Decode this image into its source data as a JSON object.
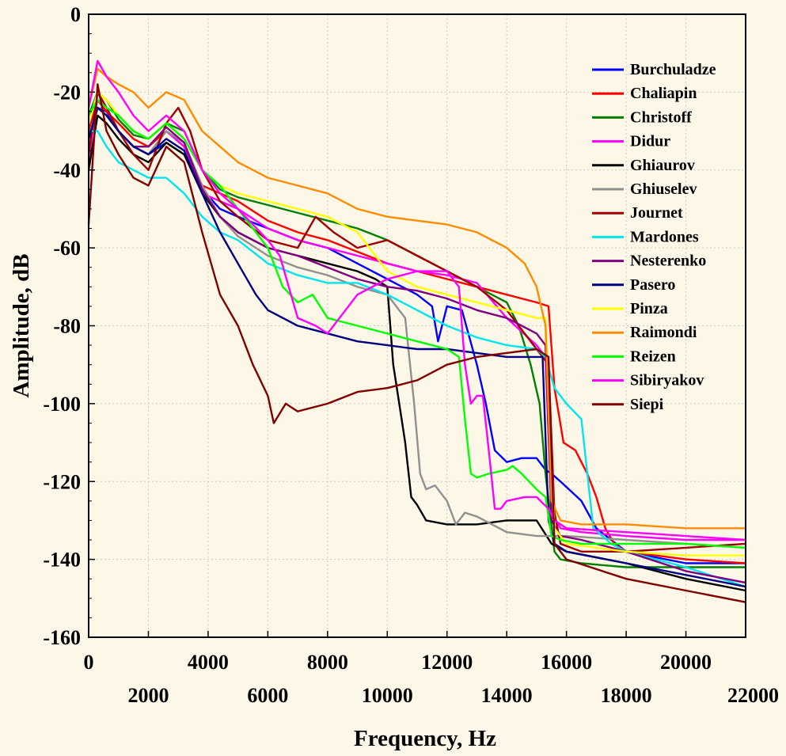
{
  "chart_data": {
    "type": "line",
    "xlabel": "Frequency, Hz",
    "ylabel": "Amplitude, dB",
    "xlim": [
      0,
      22000
    ],
    "ylim": [
      -160,
      0
    ],
    "x_ticks_upper": [
      "0",
      "4000",
      "8000",
      "12000",
      "16000",
      "20000"
    ],
    "x_ticks_lower": [
      "2000",
      "6000",
      "10000",
      "14000",
      "18000",
      "22000"
    ],
    "x_tick_values_upper": [
      0,
      4000,
      8000,
      12000,
      16000,
      20000
    ],
    "x_tick_values_lower": [
      2000,
      6000,
      10000,
      14000,
      18000,
      22000
    ],
    "y_ticks": [
      "0",
      "-20",
      "-40",
      "-60",
      "-80",
      "-100",
      "-120",
      "-140",
      "-160"
    ],
    "y_tick_values": [
      0,
      -20,
      -40,
      -60,
      -80,
      -100,
      -120,
      -140,
      -160
    ],
    "grid": true,
    "legend_position": "top-right",
    "series": [
      {
        "name": "Burchuladze",
        "color": "#0000ff",
        "x": [
          0,
          300,
          600,
          1000,
          1500,
          2000,
          2600,
          3200,
          3800,
          4400,
          5000,
          6000,
          7000,
          8000,
          9000,
          10000,
          11000,
          11500,
          11700,
          12000,
          12500,
          13000,
          13300,
          13600,
          14000,
          14500,
          15000,
          15300,
          15500,
          15800,
          16500,
          17000,
          18000,
          20000,
          22000
        ],
        "y": [
          -32,
          -24,
          -25,
          -30,
          -34,
          -36,
          -33,
          -36,
          -45,
          -50,
          -52,
          -55,
          -58,
          -60,
          -64,
          -68,
          -72,
          -75,
          -84,
          -75,
          -76,
          -90,
          -100,
          -112,
          -115,
          -114,
          -114,
          -117,
          -118,
          -120,
          -125,
          -132,
          -138,
          -141,
          -141
        ]
      },
      {
        "name": "Chaliapin",
        "color": "#ff0000",
        "x": [
          0,
          300,
          600,
          1000,
          1500,
          2000,
          2600,
          3200,
          3800,
          4400,
          5000,
          6000,
          7000,
          8000,
          9000,
          10000,
          11000,
          12000,
          13000,
          14000,
          15000,
          15400,
          15600,
          15900,
          16300,
          16700,
          17000,
          17300,
          17600,
          18000,
          20000,
          22000
        ],
        "y": [
          -30,
          -22,
          -25,
          -28,
          -32,
          -34,
          -30,
          -34,
          -44,
          -46,
          -48,
          -53,
          -56,
          -58,
          -61,
          -64,
          -66,
          -68,
          -70,
          -72,
          -74,
          -75,
          -96,
          -110,
          -112,
          -118,
          -124,
          -132,
          -136,
          -138,
          -140,
          -141
        ]
      },
      {
        "name": "Christoff",
        "color": "#008000",
        "x": [
          0,
          300,
          600,
          1000,
          1500,
          2000,
          2600,
          3200,
          3800,
          4400,
          5000,
          6000,
          7000,
          8000,
          9000,
          10000,
          11000,
          12000,
          13000,
          14000,
          14400,
          14800,
          15100,
          15300,
          15600,
          15800,
          16500,
          18000,
          20000,
          22000
        ],
        "y": [
          -26,
          -20,
          -22,
          -27,
          -31,
          -32,
          -28,
          -30,
          -40,
          -45,
          -47,
          -49,
          -51,
          -53,
          -55,
          -58,
          -62,
          -66,
          -70,
          -74,
          -80,
          -90,
          -100,
          -118,
          -138,
          -140,
          -141,
          -142,
          -142,
          -142
        ]
      },
      {
        "name": "Didur",
        "color": "#ff00ff",
        "x": [
          0,
          300,
          600,
          1000,
          1500,
          2000,
          2600,
          3200,
          3800,
          4400,
          5000,
          6000,
          7000,
          8000,
          9000,
          10000,
          11000,
          12000,
          13000,
          14000,
          15000,
          15300,
          15500,
          15800,
          16500,
          18000,
          20000,
          22000
        ],
        "y": [
          -38,
          -20,
          -24,
          -30,
          -34,
          -36,
          -30,
          -34,
          -46,
          -48,
          -50,
          -55,
          -58,
          -60,
          -62,
          -64,
          -66,
          -67,
          -69,
          -78,
          -85,
          -88,
          -128,
          -132,
          -133,
          -134,
          -135,
          -135
        ]
      },
      {
        "name": "Ghiaurov",
        "color": "#000000",
        "x": [
          0,
          300,
          600,
          1000,
          1500,
          2000,
          2600,
          3200,
          3800,
          4400,
          5000,
          6000,
          7000,
          8000,
          9000,
          9600,
          10000,
          10200,
          10400,
          10600,
          10800,
          11000,
          11300,
          12000,
          13000,
          14000,
          15000,
          15500,
          16000,
          18000,
          20000,
          22000
        ],
        "y": [
          -40,
          -26,
          -28,
          -32,
          -36,
          -38,
          -33,
          -36,
          -46,
          -52,
          -56,
          -60,
          -62,
          -64,
          -66,
          -68,
          -70,
          -90,
          -100,
          -110,
          -124,
          -126,
          -130,
          -131,
          -131,
          -130,
          -130,
          -136,
          -138,
          -141,
          -145,
          -148
        ]
      },
      {
        "name": "Ghiuselev",
        "color": "#909090",
        "x": [
          0,
          300,
          600,
          1000,
          1500,
          2000,
          2600,
          3200,
          3800,
          4400,
          5000,
          6000,
          7000,
          8000,
          9000,
          10000,
          10600,
          10900,
          11100,
          11300,
          11600,
          12000,
          12300,
          12600,
          13000,
          14000,
          15000,
          15500,
          16000,
          18000,
          20000,
          22000
        ],
        "y": [
          -34,
          -24,
          -26,
          -30,
          -34,
          -36,
          -30,
          -33,
          -44,
          -52,
          -57,
          -62,
          -65,
          -67,
          -70,
          -72,
          -78,
          -100,
          -118,
          -122,
          -121,
          -125,
          -131,
          -128,
          -129,
          -133,
          -134,
          -134,
          -134,
          -135,
          -136,
          -137
        ]
      },
      {
        "name": "Journet",
        "color": "#a00000",
        "x": [
          0,
          300,
          600,
          1000,
          1500,
          2000,
          2600,
          3000,
          3400,
          3800,
          4400,
          5000,
          6000,
          7000,
          7600,
          8200,
          9000,
          10000,
          11000,
          12000,
          13000,
          14000,
          15000,
          15400,
          15600,
          15800,
          16500,
          18000,
          20000,
          22000
        ],
        "y": [
          -36,
          -20,
          -24,
          -30,
          -36,
          -40,
          -28,
          -24,
          -30,
          -40,
          -48,
          -52,
          -58,
          -60,
          -52,
          -56,
          -60,
          -58,
          -62,
          -66,
          -70,
          -76,
          -86,
          -90,
          -128,
          -136,
          -138,
          -138,
          -137,
          -136
        ]
      },
      {
        "name": "Mardones",
        "color": "#00e5ee",
        "x": [
          0,
          300,
          600,
          1000,
          1500,
          2000,
          2600,
          3200,
          3800,
          4400,
          5000,
          6000,
          7000,
          8000,
          9000,
          10000,
          11000,
          12000,
          13000,
          14000,
          15000,
          15300,
          15600,
          16000,
          16500,
          16700,
          16900,
          17200,
          17500,
          18000,
          20000,
          22000
        ],
        "y": [
          -30,
          -30,
          -34,
          -38,
          -40,
          -42,
          -42,
          -46,
          -52,
          -56,
          -58,
          -64,
          -67,
          -69,
          -69,
          -72,
          -76,
          -80,
          -83,
          -85,
          -86,
          -88,
          -96,
          -100,
          -104,
          -118,
          -132,
          -134,
          -136,
          -138,
          -142,
          -147
        ]
      },
      {
        "name": "Nesterenko",
        "color": "#800080",
        "x": [
          0,
          300,
          600,
          1000,
          1500,
          2000,
          2600,
          3200,
          3800,
          4400,
          5000,
          6000,
          7000,
          8000,
          9000,
          10000,
          11000,
          12000,
          13000,
          14000,
          15000,
          15300,
          15500,
          15800,
          16500,
          18000,
          20000,
          22000
        ],
        "y": [
          -32,
          -24,
          -26,
          -30,
          -34,
          -34,
          -29,
          -33,
          -45,
          -52,
          -56,
          -60,
          -62,
          -65,
          -68,
          -70,
          -71,
          -73,
          -76,
          -78,
          -82,
          -85,
          -130,
          -134,
          -135,
          -138,
          -143,
          -146
        ]
      },
      {
        "name": "Pasero",
        "color": "#000080",
        "x": [
          0,
          300,
          600,
          1000,
          1500,
          2000,
          2600,
          3200,
          3800,
          4400,
          5000,
          5600,
          6000,
          7000,
          8000,
          9000,
          10000,
          11000,
          12000,
          13000,
          14000,
          15000,
          15200,
          15400,
          15600,
          16000,
          18000,
          20000,
          22000
        ],
        "y": [
          -32,
          -24,
          -26,
          -30,
          -34,
          -36,
          -32,
          -35,
          -46,
          -56,
          -64,
          -72,
          -76,
          -80,
          -82,
          -84,
          -85,
          -86,
          -86,
          -87,
          -88,
          -88,
          -88,
          -130,
          -136,
          -138,
          -141,
          -144,
          -147
        ]
      },
      {
        "name": "Pinza",
        "color": "#ffff00",
        "x": [
          0,
          300,
          600,
          1000,
          1500,
          2000,
          2600,
          3200,
          3800,
          4400,
          5000,
          6000,
          7000,
          8000,
          9000,
          10000,
          11000,
          12000,
          13000,
          14000,
          15000,
          15300,
          15600,
          16000,
          18000,
          20000,
          22000
        ],
        "y": [
          -28,
          -20,
          -22,
          -26,
          -30,
          -32,
          -28,
          -32,
          -40,
          -44,
          -46,
          -48,
          -50,
          -52,
          -56,
          -66,
          -70,
          -72,
          -74,
          -76,
          -78,
          -78,
          -132,
          -136,
          -138,
          -139,
          -139
        ]
      },
      {
        "name": "Raimondi",
        "color": "#ff8c00",
        "x": [
          0,
          300,
          600,
          1000,
          1500,
          2000,
          2600,
          3200,
          3800,
          4400,
          5000,
          6000,
          7000,
          8000,
          9000,
          10000,
          11000,
          12000,
          13000,
          14000,
          14600,
          15000,
          15300,
          15500,
          15800,
          16500,
          18000,
          20000,
          22000
        ],
        "y": [
          -24,
          -14,
          -16,
          -18,
          -20,
          -24,
          -20,
          -22,
          -30,
          -34,
          -38,
          -42,
          -44,
          -46,
          -50,
          -52,
          -53,
          -54,
          -56,
          -60,
          -64,
          -70,
          -80,
          -125,
          -130,
          -131,
          -131,
          -132,
          -132
        ]
      },
      {
        "name": "Reizen",
        "color": "#00ff00",
        "x": [
          0,
          300,
          600,
          1000,
          1500,
          2000,
          2600,
          3200,
          3800,
          4400,
          5000,
          6000,
          6500,
          7000,
          7500,
          8000,
          9000,
          10000,
          11000,
          12000,
          12400,
          12600,
          12800,
          13000,
          13400,
          14000,
          14200,
          14500,
          15000,
          15300,
          15500,
          15800,
          16500,
          18000,
          20000,
          22000
        ],
        "y": [
          -26,
          -22,
          -24,
          -26,
          -30,
          -32,
          -28,
          -32,
          -40,
          -44,
          -50,
          -60,
          -70,
          -74,
          -72,
          -78,
          -80,
          -82,
          -84,
          -86,
          -88,
          -104,
          -118,
          -119,
          -118,
          -117,
          -116,
          -118,
          -122,
          -124,
          -134,
          -135,
          -136,
          -136,
          -136,
          -137
        ]
      },
      {
        "name": "Sibiryakov",
        "color": "#ff00ff",
        "x": [
          0,
          300,
          600,
          1000,
          1500,
          2000,
          2600,
          3200,
          3800,
          4400,
          5000,
          6000,
          6400,
          7000,
          7600,
          8000,
          8600,
          9000,
          10000,
          11000,
          12000,
          12400,
          12600,
          12800,
          13000,
          13200,
          13400,
          13600,
          13800,
          14000,
          14600,
          15000,
          15400,
          15600,
          16000,
          18000,
          20000,
          22000
        ],
        "y": [
          -24,
          -12,
          -16,
          -20,
          -26,
          -30,
          -26,
          -30,
          -40,
          -46,
          -50,
          -58,
          -62,
          -78,
          -80,
          -82,
          -76,
          -72,
          -68,
          -66,
          -66,
          -70,
          -90,
          -100,
          -98,
          -98,
          -112,
          -127,
          -127,
          -125,
          -124,
          -124,
          -127,
          -130,
          -132,
          -133,
          -134,
          -135
        ]
      },
      {
        "name": "Siepi",
        "color": "#800000",
        "x": [
          0,
          300,
          600,
          1000,
          1500,
          2000,
          2600,
          3200,
          3800,
          4400,
          5000,
          5500,
          6000,
          6200,
          6600,
          7000,
          8000,
          9000,
          10000,
          11000,
          12000,
          13000,
          14000,
          15000,
          15400,
          15600,
          16000,
          18000,
          20000,
          22000
        ],
        "y": [
          -54,
          -18,
          -30,
          -36,
          -42,
          -44,
          -34,
          -38,
          -56,
          -72,
          -80,
          -90,
          -98,
          -105,
          -100,
          -102,
          -100,
          -97,
          -96,
          -94,
          -90,
          -88,
          -87,
          -86,
          -88,
          -136,
          -140,
          -145,
          -148,
          -151
        ]
      }
    ]
  }
}
